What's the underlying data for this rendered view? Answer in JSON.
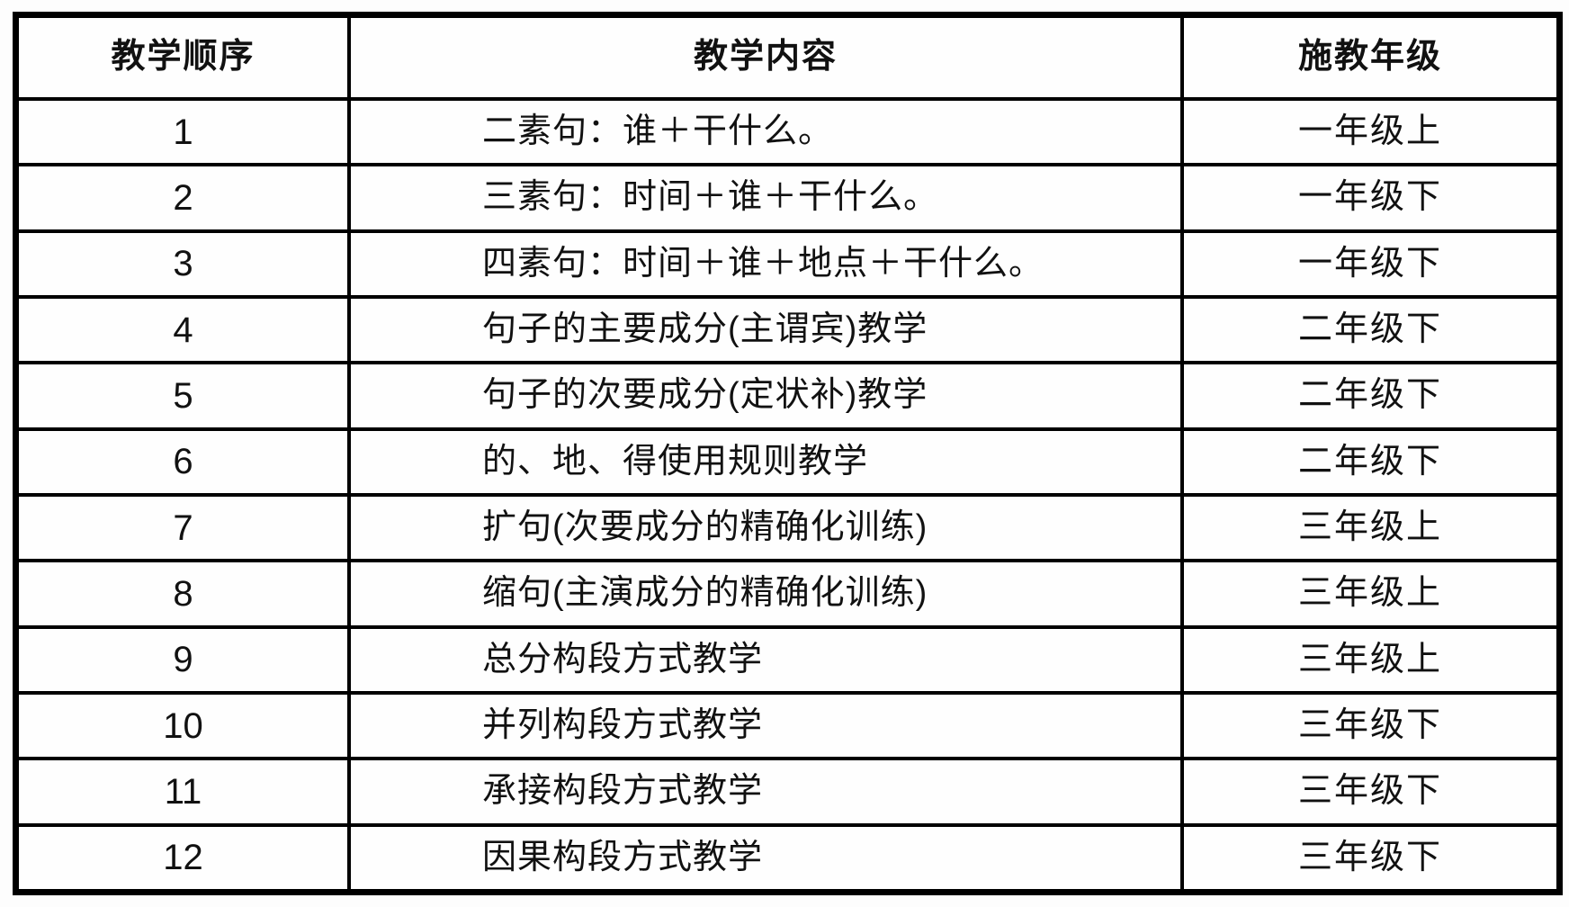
{
  "colors": {
    "background": "#ffffff",
    "border": "#000000",
    "text": "#111111"
  },
  "table": {
    "columns": [
      {
        "label": "教学顺序"
      },
      {
        "label": "教学内容"
      },
      {
        "label": "施教年级"
      }
    ],
    "rows": [
      {
        "order": "1",
        "content": "二素句：谁＋干什么。",
        "grade": "一年级上"
      },
      {
        "order": "2",
        "content": "三素句：时间＋谁＋干什么。",
        "grade": "一年级下"
      },
      {
        "order": "3",
        "content": "四素句：时间＋谁＋地点＋干什么。",
        "grade": "一年级下"
      },
      {
        "order": "4",
        "content": "句子的主要成分(主谓宾)教学",
        "grade": "二年级下"
      },
      {
        "order": "5",
        "content": "句子的次要成分(定状补)教学",
        "grade": "二年级下"
      },
      {
        "order": "6",
        "content": "的、地、得使用规则教学",
        "grade": "二年级下"
      },
      {
        "order": "7",
        "content": "扩句(次要成分的精确化训练)",
        "grade": "三年级上"
      },
      {
        "order": "8",
        "content": "缩句(主演成分的精确化训练)",
        "grade": "三年级上"
      },
      {
        "order": "9",
        "content": "总分构段方式教学",
        "grade": "三年级上"
      },
      {
        "order": "10",
        "content": "并列构段方式教学",
        "grade": "三年级下"
      },
      {
        "order": "11",
        "content": "承接构段方式教学",
        "grade": "三年级下"
      },
      {
        "order": "12",
        "content": "因果构段方式教学",
        "grade": "三年级下"
      }
    ]
  }
}
